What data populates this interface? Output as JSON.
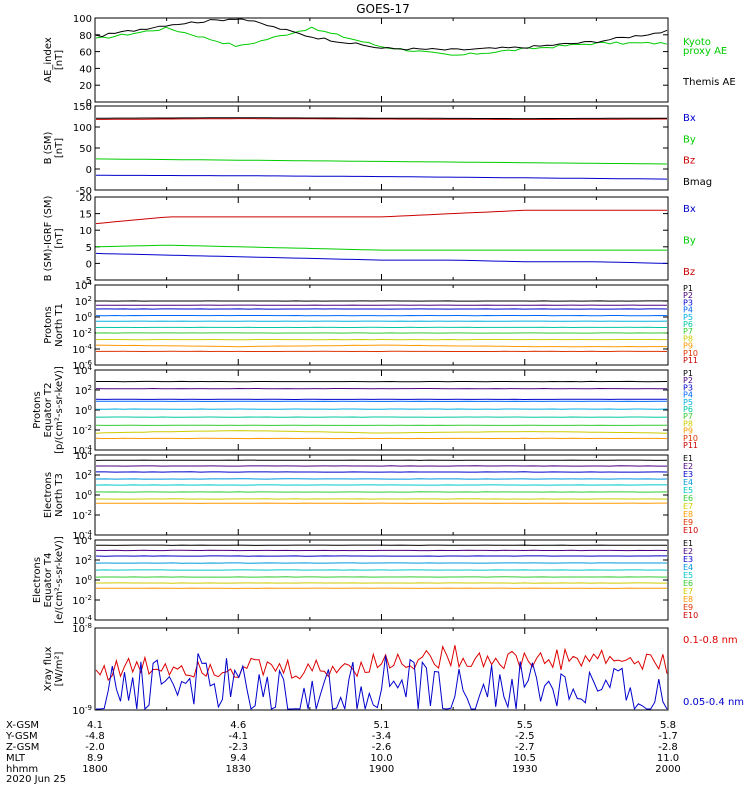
{
  "title": "GOES-17",
  "panels": [
    {
      "ylabel": [
        "AE_index",
        "[nT]"
      ],
      "yticks": [
        "100",
        "80",
        "60",
        "40",
        "20",
        "0"
      ],
      "legend": [
        {
          "text": "Kyoto",
          "color": "#00cc00"
        },
        {
          "text": "proxy AE",
          "color": "#00cc00"
        },
        {
          "text": "Themis AE",
          "color": "#000000"
        }
      ]
    },
    {
      "ylabel": [
        "B (SM)",
        "[nT]"
      ],
      "yticks": [
        "150",
        "100",
        "50",
        "0",
        "-50"
      ],
      "legend": [
        {
          "text": "Bx",
          "color": "#0000cc"
        },
        {
          "text": "By",
          "color": "#00cc00"
        },
        {
          "text": "Bz",
          "color": "#cc0000"
        },
        {
          "text": "Bmag",
          "color": "#000000"
        }
      ]
    },
    {
      "ylabel": [
        "B (SM)-IGRF (SM)",
        "[nT]"
      ],
      "yticks": [
        "20",
        "15",
        "10",
        "5",
        "0",
        "-5"
      ],
      "legend": [
        {
          "text": "Bx",
          "color": "#0000cc"
        },
        {
          "text": "By",
          "color": "#00cc00"
        },
        {
          "text": "Bz",
          "color": "#cc0000"
        }
      ]
    },
    {
      "ylabel": [
        "Protons",
        "North T1"
      ],
      "yticks": [
        "10^4",
        "10^2",
        "10^0",
        "10^-2",
        "10^-4",
        "10^-6"
      ],
      "legend": [
        {
          "text": "P1",
          "color": "#000000"
        },
        {
          "text": "P2",
          "color": "#4b0082"
        },
        {
          "text": "P3",
          "color": "#0000cc"
        },
        {
          "text": "P4",
          "color": "#0066ff"
        },
        {
          "text": "P5",
          "color": "#00b0e0"
        },
        {
          "text": "P6",
          "color": "#00c8a0"
        },
        {
          "text": "P7",
          "color": "#33cc33"
        },
        {
          "text": "P8",
          "color": "#cccc00"
        },
        {
          "text": "P9",
          "color": "#ff9900"
        },
        {
          "text": "P10",
          "color": "#dd3300"
        },
        {
          "text": "P11",
          "color": "#cc0000"
        }
      ]
    },
    {
      "ylabel": [
        "Protons",
        "Equator T2",
        "[p/(cm²-s-sr-keV)]"
      ],
      "yticks": [
        "10^4",
        "10^2",
        "10^0",
        "10^-2",
        "10^-4"
      ],
      "legend": [
        {
          "text": "P1",
          "color": "#000000"
        },
        {
          "text": "P2",
          "color": "#4b0082"
        },
        {
          "text": "P3",
          "color": "#0000cc"
        },
        {
          "text": "P4",
          "color": "#0066ff"
        },
        {
          "text": "P5",
          "color": "#00b0e0"
        },
        {
          "text": "P6",
          "color": "#00c8a0"
        },
        {
          "text": "P7",
          "color": "#33cc33"
        },
        {
          "text": "P8",
          "color": "#cccc00"
        },
        {
          "text": "P9",
          "color": "#ff9900"
        },
        {
          "text": "P10",
          "color": "#dd3300"
        },
        {
          "text": "P11",
          "color": "#cc0000"
        }
      ]
    },
    {
      "ylabel": [
        "Electrons",
        "North T3"
      ],
      "yticks": [
        "10^4",
        "10^2",
        "10^0",
        "10^-2",
        "10^-4"
      ],
      "legend": [
        {
          "text": "E1",
          "color": "#000000"
        },
        {
          "text": "E2",
          "color": "#4b0082"
        },
        {
          "text": "E3",
          "color": "#0000cc"
        },
        {
          "text": "E4",
          "color": "#0099dd"
        },
        {
          "text": "E5",
          "color": "#00c8c8"
        },
        {
          "text": "E6",
          "color": "#33cc33"
        },
        {
          "text": "E7",
          "color": "#cccc00"
        },
        {
          "text": "E8",
          "color": "#ff9900"
        },
        {
          "text": "E9",
          "color": "#dd3300"
        },
        {
          "text": "E10",
          "color": "#cc0000"
        }
      ]
    },
    {
      "ylabel": [
        "Electrons",
        "Equator T4",
        "[e/(cm²-s-sr-keV)]"
      ],
      "yticks": [
        "10^4",
        "10^2",
        "10^0",
        "10^-2",
        "10^-4"
      ],
      "legend": [
        {
          "text": "E1",
          "color": "#000000"
        },
        {
          "text": "E2",
          "color": "#4b0082"
        },
        {
          "text": "E3",
          "color": "#0000cc"
        },
        {
          "text": "E4",
          "color": "#0099dd"
        },
        {
          "text": "E5",
          "color": "#00c8c8"
        },
        {
          "text": "E6",
          "color": "#33cc33"
        },
        {
          "text": "E7",
          "color": "#cccc00"
        },
        {
          "text": "E8",
          "color": "#ff9900"
        },
        {
          "text": "E9",
          "color": "#dd3300"
        },
        {
          "text": "E10",
          "color": "#cc0000"
        }
      ]
    },
    {
      "ylabel": [
        "Xray flux",
        "[W/m²]"
      ],
      "yticks": [
        "10^-8",
        "10^-9"
      ],
      "legend": [
        {
          "text": "0.1-0.8 nm",
          "color": "#dd0000"
        },
        {
          "text": "0.05-0.4 nm",
          "color": "#0000cc"
        }
      ]
    }
  ],
  "bottom_axis": {
    "row_labels": [
      "X-GSM",
      "Y-GSM",
      "Z-GSM",
      "MLT",
      "hhmm"
    ],
    "columns": [
      [
        "4.1",
        "-4.8",
        "-2.0",
        "8.9",
        "1800"
      ],
      [
        "4.6",
        "-4.1",
        "-2.3",
        "9.4",
        "1830"
      ],
      [
        "5.1",
        "-3.4",
        "-2.6",
        "10.0",
        "1900"
      ],
      [
        "5.5",
        "-2.5",
        "-2.7",
        "10.5",
        "1930"
      ],
      [
        "5.8",
        "-1.7",
        "-2.8",
        "11.0",
        "2000"
      ]
    ],
    "date": "2020 Jun 25"
  },
  "chart_data": [
    {
      "type": "line",
      "ylabel": "AE_index [nT]",
      "ylim": [
        0,
        100
      ],
      "x": [
        "1800",
        "1815",
        "1830",
        "1845",
        "1900",
        "1915",
        "1930",
        "1945",
        "2000"
      ],
      "series": [
        {
          "name": "Kyoto proxy AE",
          "color": "#00cc00",
          "values": [
            75,
            88,
            66,
            88,
            66,
            55,
            63,
            70,
            70
          ]
        },
        {
          "name": "Themis AE",
          "color": "#000000",
          "values": [
            78,
            92,
            100,
            78,
            64,
            62,
            65,
            72,
            84
          ]
        }
      ]
    },
    {
      "type": "line",
      "ylabel": "B (SM) [nT]",
      "ylim": [
        -50,
        150
      ],
      "x": [
        "1800",
        "1830",
        "1900",
        "1930",
        "2000"
      ],
      "series": [
        {
          "name": "Bx",
          "color": "#0000cc",
          "values": [
            -15,
            -16,
            -18,
            -21,
            -24
          ]
        },
        {
          "name": "By",
          "color": "#00cc00",
          "values": [
            24,
            21,
            18,
            15,
            12
          ]
        },
        {
          "name": "Bz",
          "color": "#cc0000",
          "values": [
            118,
            120,
            119,
            118,
            119
          ]
        },
        {
          "name": "Bmag",
          "color": "#000000",
          "values": [
            121,
            122,
            121,
            120,
            121
          ]
        }
      ]
    },
    {
      "type": "line",
      "ylabel": "B (SM)-IGRF (SM) [nT]",
      "ylim": [
        -5,
        20
      ],
      "x": [
        "1800",
        "1815",
        "1830",
        "1845",
        "1900",
        "1915",
        "1930",
        "1945",
        "2000"
      ],
      "series": [
        {
          "name": "Bx",
          "color": "#0000cc",
          "values": [
            3,
            2.5,
            2,
            1.5,
            1,
            1,
            0.5,
            0.5,
            0
          ]
        },
        {
          "name": "By",
          "color": "#00cc00",
          "values": [
            5,
            5.5,
            5,
            4.5,
            4,
            4,
            4,
            4,
            4
          ]
        },
        {
          "name": "Bz",
          "color": "#cc0000",
          "values": [
            12,
            14,
            14,
            14,
            14,
            15,
            16,
            16,
            16
          ]
        }
      ]
    },
    {
      "type": "line",
      "ylabel": "Protons North T1",
      "yscale": "log",
      "ylim": [
        1e-06,
        10000.0
      ],
      "x": [
        "1800",
        "1830",
        "1900",
        "1930",
        "2000"
      ],
      "series": [
        {
          "name": "P1",
          "color": "#000000",
          "values": [
            100,
            100,
            100,
            100,
            100
          ]
        },
        {
          "name": "P2",
          "color": "#4b0082",
          "values": [
            30,
            30,
            30,
            30,
            30
          ]
        },
        {
          "name": "P3",
          "color": "#0000cc",
          "values": [
            10,
            10,
            10,
            10,
            10
          ]
        },
        {
          "name": "P4",
          "color": "#0066ff",
          "values": [
            1.5,
            1.5,
            1.5,
            1.5,
            1.5
          ]
        },
        {
          "name": "P5",
          "color": "#00b0e0",
          "values": [
            0.3,
            0.3,
            0.3,
            0.3,
            0.3
          ]
        },
        {
          "name": "P6",
          "color": "#00c8a0",
          "values": [
            0.05,
            0.05,
            0.05,
            0.05,
            0.05
          ]
        },
        {
          "name": "P7",
          "color": "#33cc33",
          "values": [
            0.01,
            0.01,
            0.01,
            0.01,
            0.01
          ]
        },
        {
          "name": "P8",
          "color": "#cccc00",
          "values": [
            0.0015,
            0.0015,
            0.0015,
            0.0015,
            0.0015
          ]
        },
        {
          "name": "P9",
          "color": "#ff9900",
          "values": [
            0.0003,
            0.0002,
            0.0003,
            0.0002,
            0.0002
          ]
        },
        {
          "name": "P10",
          "color": "#dd3300",
          "values": [
            5e-05,
            5e-05,
            5e-05,
            5e-05,
            5e-05
          ]
        }
      ]
    },
    {
      "type": "line",
      "ylabel": "Protons Equator T2 [p/(cm²-s-sr-keV)]",
      "yscale": "log",
      "ylim": [
        1e-05,
        10000.0
      ],
      "x": [
        "1800",
        "1830",
        "1900",
        "1930",
        "2000"
      ],
      "series": [
        {
          "name": "P1",
          "color": "#000000",
          "values": [
            500,
            500,
            500,
            500,
            500
          ]
        },
        {
          "name": "P2",
          "color": "#4b0082",
          "values": [
            80,
            80,
            80,
            80,
            80
          ]
        },
        {
          "name": "P3",
          "color": "#0000cc",
          "values": [
            5,
            5,
            5,
            5,
            5
          ]
        },
        {
          "name": "P4",
          "color": "#0066ff",
          "values": [
            3,
            3,
            3,
            3,
            3
          ]
        },
        {
          "name": "P5",
          "color": "#00b0e0",
          "values": [
            0.4,
            0.4,
            0.4,
            0.4,
            0.4
          ]
        },
        {
          "name": "P6",
          "color": "#00c8a0",
          "values": [
            0.05,
            0.05,
            0.05,
            0.05,
            0.05
          ]
        },
        {
          "name": "P7",
          "color": "#33cc33",
          "values": [
            0.006,
            0.006,
            0.006,
            0.006,
            0.006
          ]
        },
        {
          "name": "P8",
          "color": "#cccc00",
          "values": [
            0.0008,
            0.0015,
            0.0008,
            0.0012,
            0.0008
          ]
        },
        {
          "name": "P9",
          "color": "#ff9900",
          "values": [
            0.0002,
            0.0002,
            0.0002,
            0.0002,
            0.0002
          ]
        }
      ]
    },
    {
      "type": "line",
      "ylabel": "Electrons North T3",
      "yscale": "log",
      "ylim": [
        0.0001,
        10000.0
      ],
      "x": [
        "1800",
        "1830",
        "1900",
        "1930",
        "2000"
      ],
      "series": [
        {
          "name": "E1",
          "color": "#000000",
          "values": [
            3000,
            3000,
            3000,
            3000,
            3000
          ]
        },
        {
          "name": "E2",
          "color": "#4b0082",
          "values": [
            800,
            800,
            800,
            800,
            800
          ]
        },
        {
          "name": "E3",
          "color": "#0000cc",
          "values": [
            200,
            200,
            200,
            200,
            200
          ]
        },
        {
          "name": "E4",
          "color": "#0099dd",
          "values": [
            40,
            40,
            40,
            40,
            40
          ]
        },
        {
          "name": "E5",
          "color": "#00c8c8",
          "values": [
            10,
            10,
            10,
            10,
            10
          ]
        },
        {
          "name": "E6",
          "color": "#33cc33",
          "values": [
            2,
            2,
            2,
            2,
            2
          ]
        },
        {
          "name": "E7",
          "color": "#cccc00",
          "values": [
            0.4,
            0.4,
            0.4,
            0.4,
            0.4
          ]
        },
        {
          "name": "E8",
          "color": "#ff9900",
          "values": [
            0.15,
            0.15,
            0.15,
            0.15,
            0.15
          ]
        }
      ]
    },
    {
      "type": "line",
      "ylabel": "Electrons Equator T4 [e/(cm²-s-sr-keV)]",
      "yscale": "log",
      "ylim": [
        0.0001,
        10000.0
      ],
      "x": [
        "1800",
        "1830",
        "1900",
        "1930",
        "2000"
      ],
      "series": [
        {
          "name": "E1",
          "color": "#000000",
          "values": [
            3000,
            3000,
            3000,
            3000,
            3000
          ]
        },
        {
          "name": "E2",
          "color": "#4b0082",
          "values": [
            900,
            900,
            900,
            900,
            900
          ]
        },
        {
          "name": "E3",
          "color": "#0000cc",
          "values": [
            250,
            250,
            250,
            250,
            250
          ]
        },
        {
          "name": "E4",
          "color": "#0099dd",
          "values": [
            50,
            50,
            50,
            50,
            50
          ]
        },
        {
          "name": "E5",
          "color": "#00c8c8",
          "values": [
            10,
            10,
            10,
            10,
            10
          ]
        },
        {
          "name": "E6",
          "color": "#33cc33",
          "values": [
            2,
            2,
            2,
            2,
            2
          ]
        },
        {
          "name": "E7",
          "color": "#cccc00",
          "values": [
            0.5,
            0.5,
            0.5,
            0.5,
            0.5
          ]
        },
        {
          "name": "E8",
          "color": "#ff9900",
          "values": [
            0.15,
            0.15,
            0.15,
            0.15,
            0.15
          ]
        }
      ]
    },
    {
      "type": "line",
      "ylabel": "Xray flux [W/m²]",
      "yscale": "log",
      "ylim": [
        1e-09,
        1e-08
      ],
      "x": [
        "1800",
        "1815",
        "1830",
        "1845",
        "1900",
        "1915",
        "1930",
        "1945",
        "2000"
      ],
      "series": [
        {
          "name": "0.1-0.8 nm",
          "color": "#dd0000",
          "values": [
            3e-09,
            3.5e-09,
            3.3e-09,
            3e-09,
            3.8e-09,
            4.5e-09,
            4e-09,
            4.3e-09,
            3.6e-09
          ]
        },
        {
          "name": "0.05-0.4 nm",
          "color": "#0000cc",
          "values": [
            1.3e-09,
            2.5e-09,
            1.8e-09,
            1.2e-09,
            2.2e-09,
            1.4e-09,
            2e-09,
            1.6e-09,
            1.2e-09
          ]
        }
      ]
    }
  ]
}
